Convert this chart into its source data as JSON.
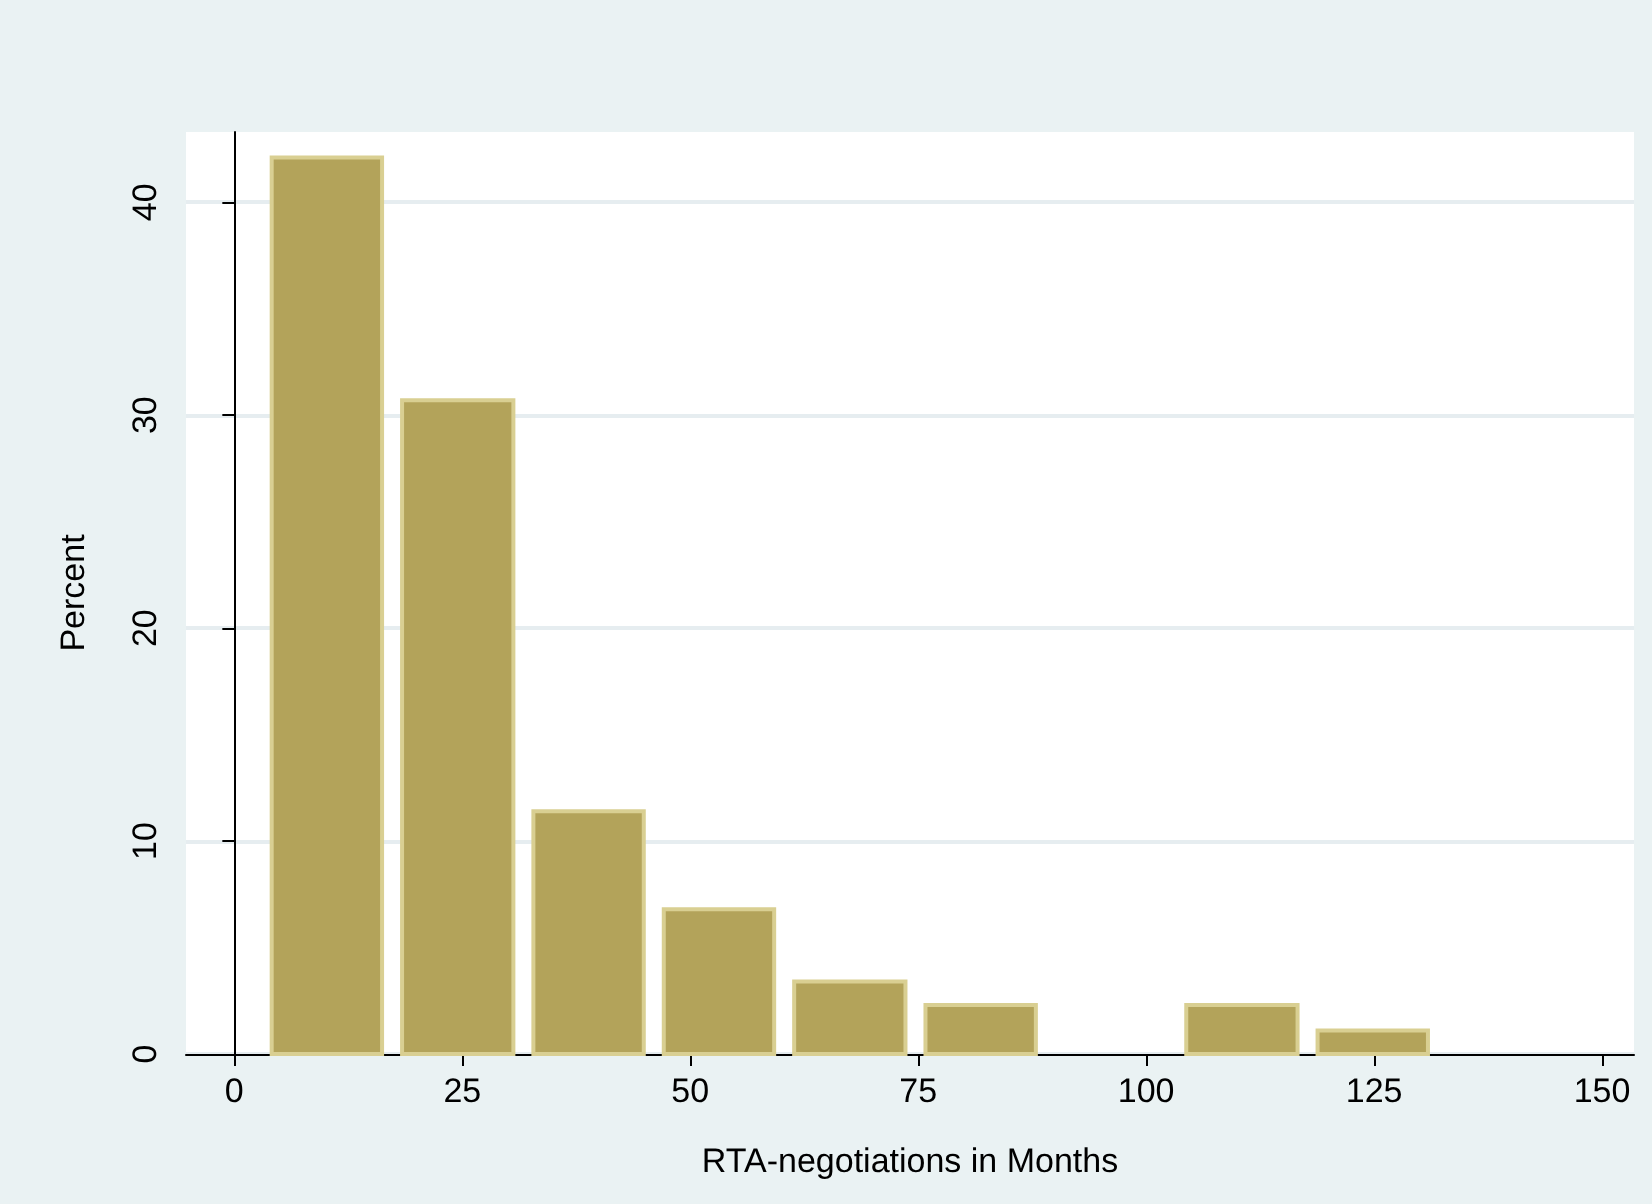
{
  "chart_data": {
    "type": "histogram",
    "xlabel": "RTA-negotiations in Months",
    "ylabel": "Percent",
    "bins": [
      3,
      17.3,
      31.7,
      46,
      60.3,
      74.7,
      89,
      103.3,
      117.7,
      132
    ],
    "values": [
      42.1,
      30.7,
      11.4,
      6.8,
      3.4,
      2.3,
      0,
      2.3,
      1.1
    ],
    "color": "#b3a35a",
    "xlim": [
      -5.3,
      153.5
    ],
    "xticks": [
      0,
      25,
      50,
      75,
      100,
      125,
      150
    ],
    "ylim": [
      0,
      43.3
    ],
    "yticks": [
      0,
      10,
      20,
      30,
      40
    ],
    "grid": "y"
  }
}
